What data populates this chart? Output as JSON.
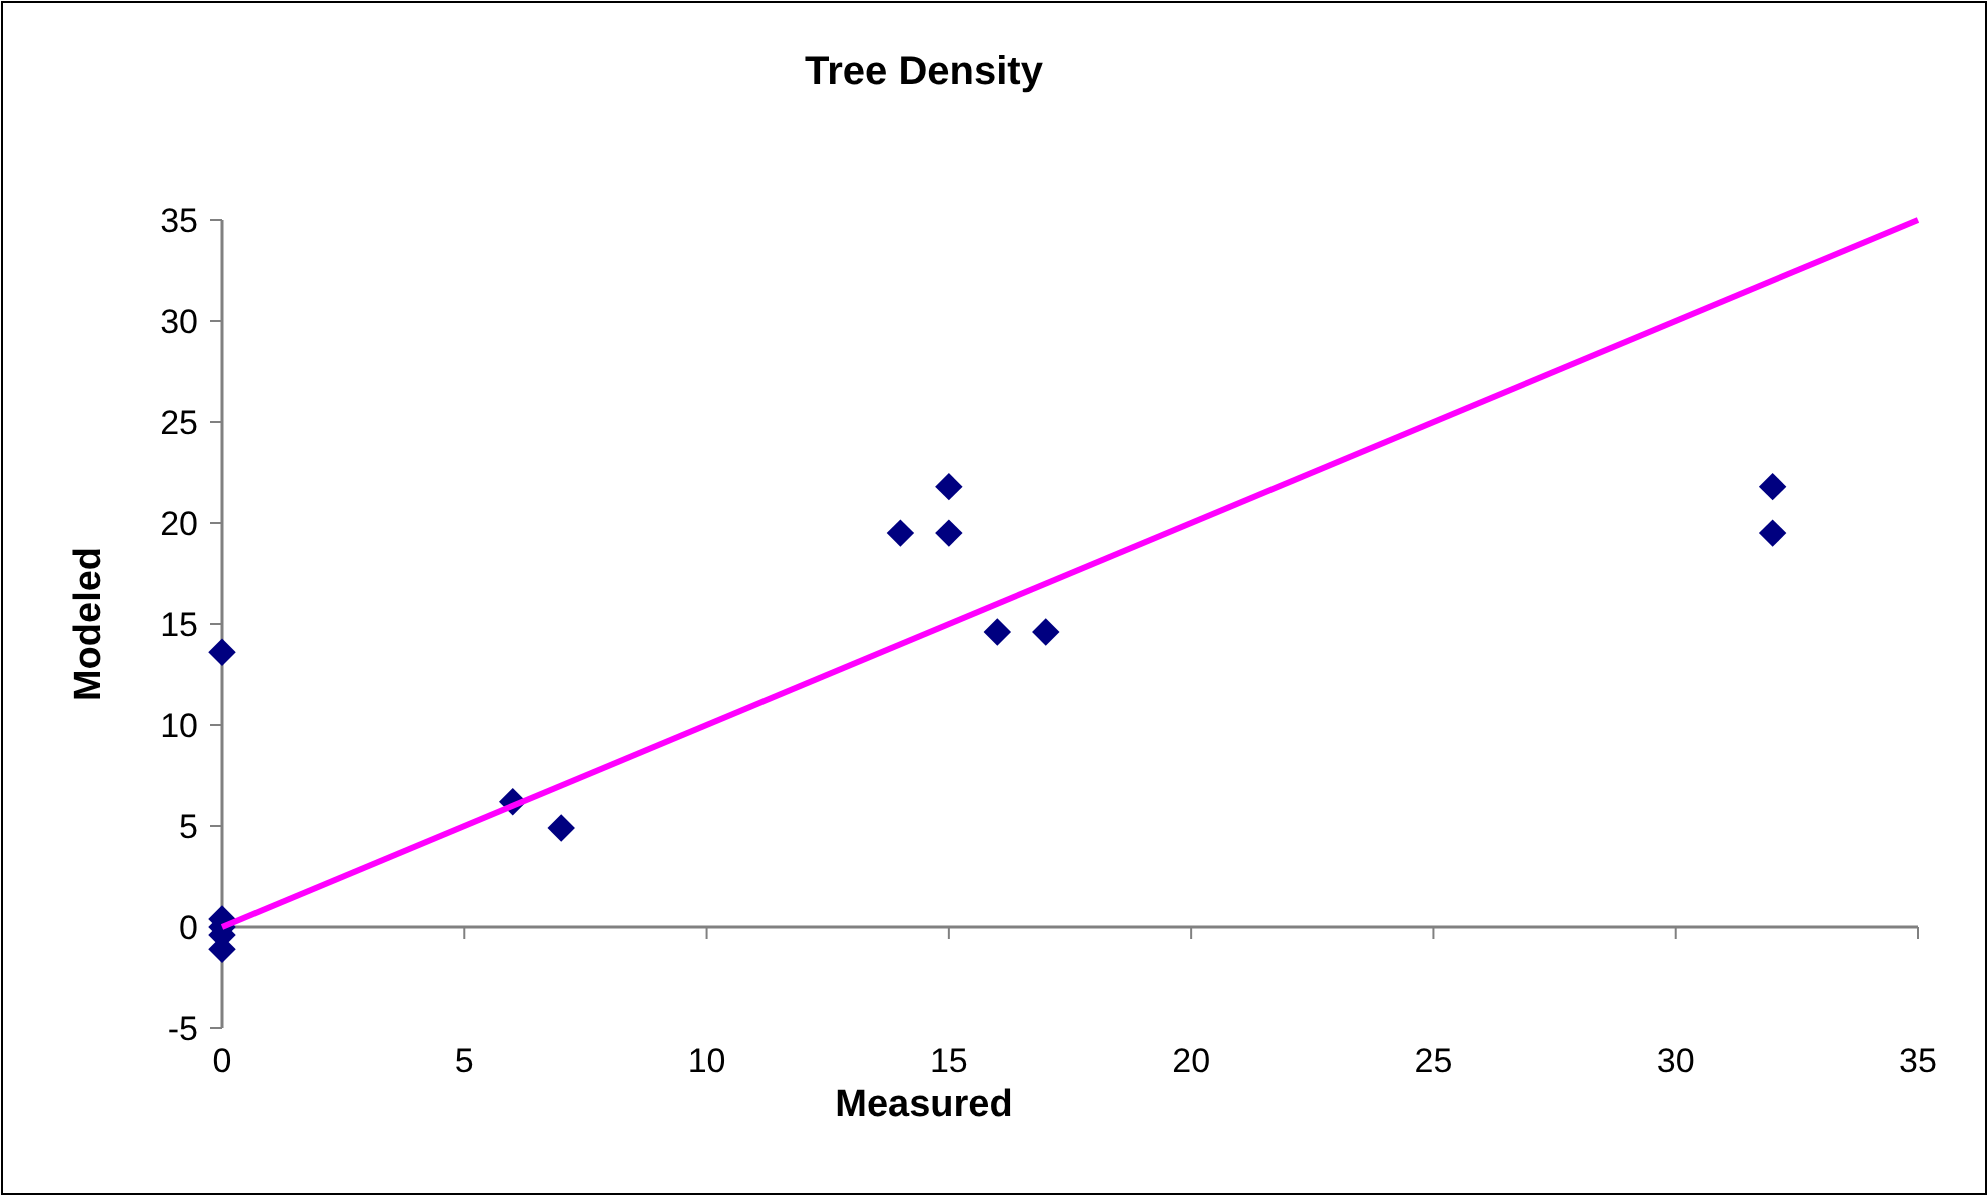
{
  "chart_data": {
    "type": "scatter",
    "title": "Tree Density",
    "xlabel": "Measured",
    "ylabel": "Modeled",
    "xlim": [
      0,
      35
    ],
    "xticks": [
      0,
      5,
      10,
      15,
      20,
      25,
      30,
      35
    ],
    "ylim": [
      -5,
      35
    ],
    "yticks": [
      -5,
      0,
      5,
      10,
      15,
      20,
      25,
      30,
      35
    ],
    "marker": "diamond",
    "series": [
      {
        "color": "#000080",
        "x": [
          0,
          0,
          0,
          0,
          0,
          6,
          7,
          14,
          15,
          15,
          16,
          17,
          32,
          32
        ],
        "values": [
          13.6,
          0.4,
          0,
          -0.4,
          -1.1,
          6.2,
          4.9,
          19.5,
          21.8,
          19.5,
          14.6,
          14.6,
          21.8,
          19.5
        ]
      },
      {
        "type": "line",
        "color": "#ff00ff",
        "marker": "none",
        "x": [
          0,
          35
        ],
        "values": [
          0,
          35
        ]
      }
    ]
  }
}
